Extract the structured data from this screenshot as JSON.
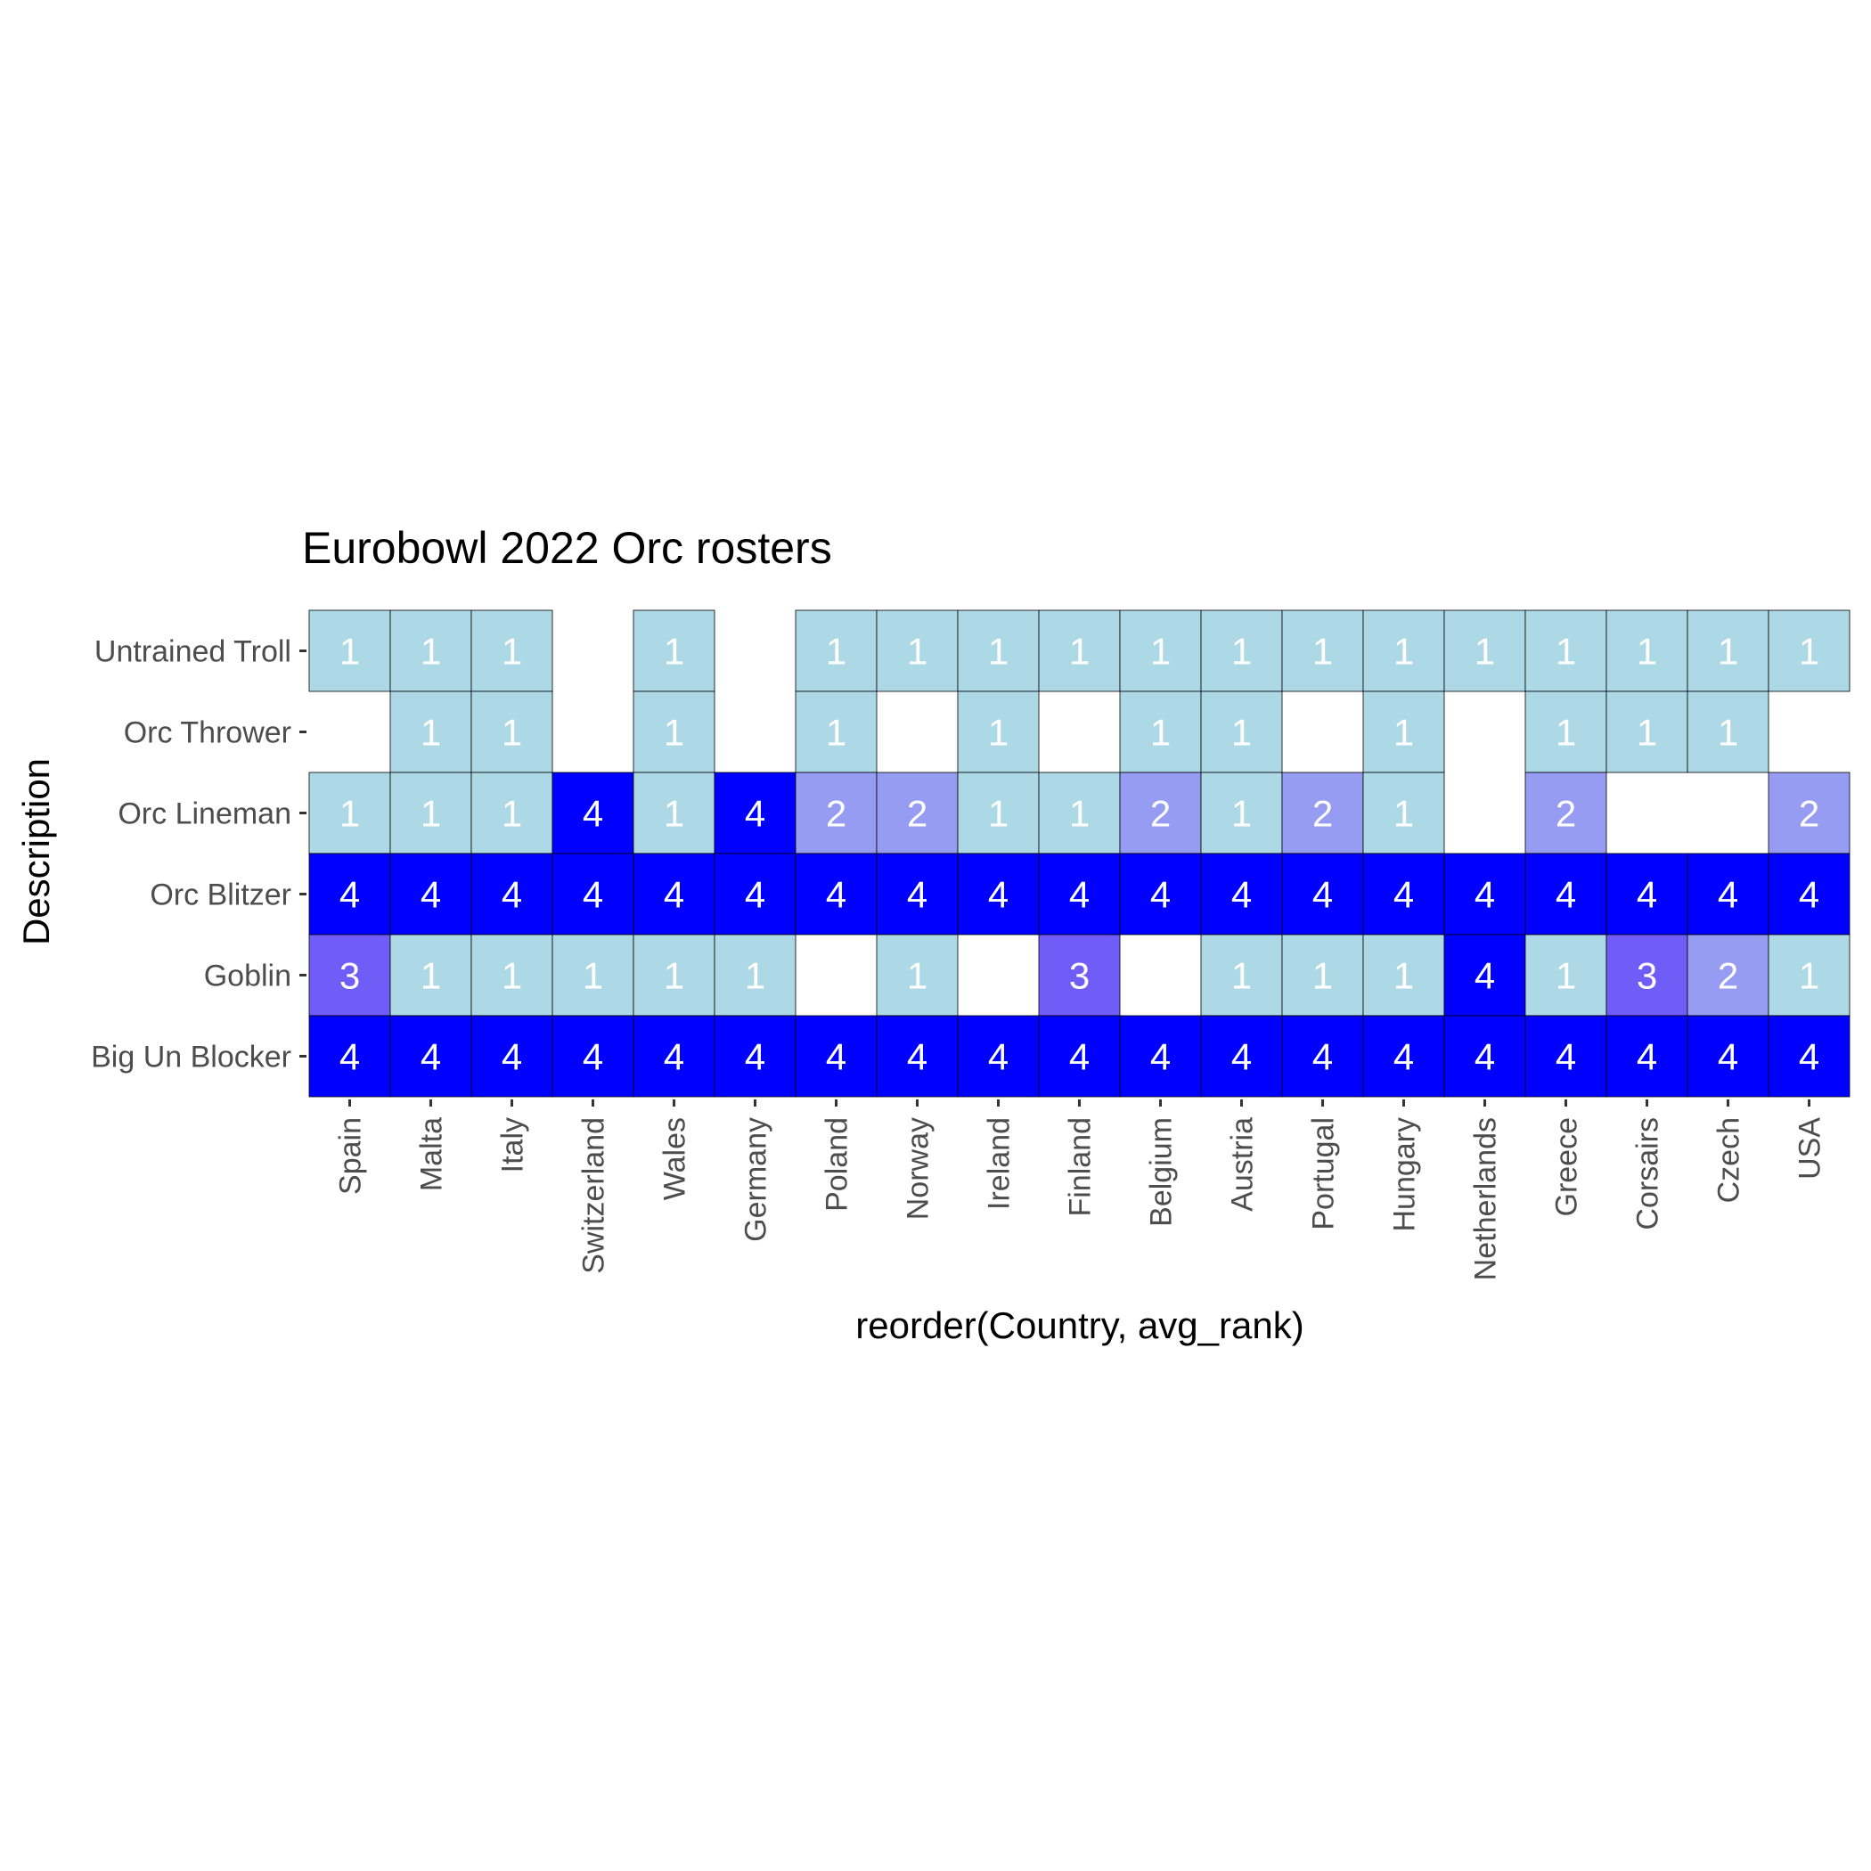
{
  "chart_data": {
    "type": "heatmap",
    "title": "Eurobowl 2022 Orc rosters",
    "xlabel": "reorder(Country, avg_rank)",
    "ylabel": "Description",
    "x": [
      "Spain",
      "Malta",
      "Italy",
      "Switzerland",
      "Wales",
      "Germany",
      "Poland",
      "Norway",
      "Ireland",
      "Finland",
      "Belgium",
      "Austria",
      "Portugal",
      "Hungary",
      "Netherlands",
      "Greece",
      "Corsairs",
      "Czech",
      "USA"
    ],
    "y": [
      "Untrained Troll",
      "Orc Thrower",
      "Orc Lineman",
      "Orc Blitzer",
      "Goblin",
      "Big Un Blocker"
    ],
    "values": [
      [
        1,
        1,
        1,
        null,
        1,
        null,
        1,
        1,
        1,
        1,
        1,
        1,
        1,
        1,
        1,
        1,
        1,
        1,
        1
      ],
      [
        null,
        1,
        1,
        null,
        1,
        null,
        1,
        null,
        1,
        null,
        1,
        1,
        null,
        1,
        null,
        1,
        1,
        1,
        null
      ],
      [
        1,
        1,
        1,
        4,
        1,
        4,
        2,
        2,
        1,
        1,
        2,
        1,
        2,
        1,
        null,
        2,
        null,
        null,
        2
      ],
      [
        4,
        4,
        4,
        4,
        4,
        4,
        4,
        4,
        4,
        4,
        4,
        4,
        4,
        4,
        4,
        4,
        4,
        4,
        4
      ],
      [
        3,
        1,
        1,
        1,
        1,
        1,
        null,
        1,
        null,
        3,
        null,
        1,
        1,
        1,
        4,
        1,
        3,
        2,
        1
      ],
      [
        4,
        4,
        4,
        4,
        4,
        4,
        4,
        4,
        4,
        4,
        4,
        4,
        4,
        4,
        4,
        4,
        4,
        4,
        4
      ]
    ],
    "color_scale": {
      "1": "#add8e6",
      "2": "#959cf2",
      "3": "#705df8",
      "4": "#0000ff"
    },
    "cell_text_color": "#ffffff",
    "grid": false,
    "legend": "none"
  }
}
